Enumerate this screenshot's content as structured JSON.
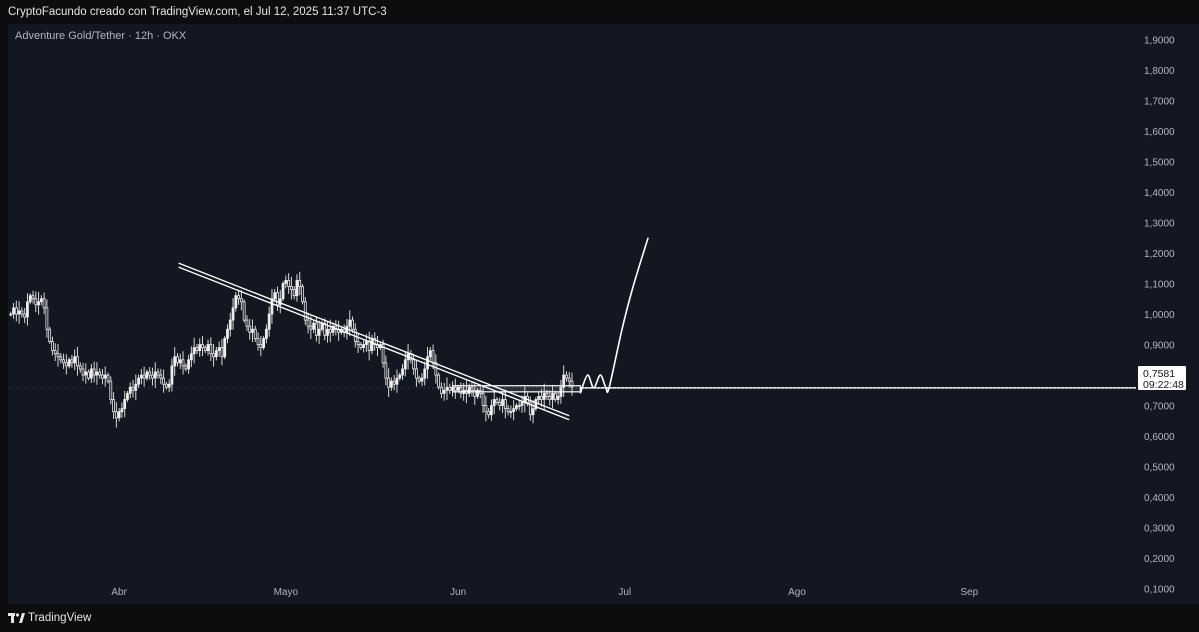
{
  "header": {
    "caption": "CryptoFacundo creado con TradingView.com, el Jul 12, 2025 11:37 UTC-3"
  },
  "symbol": {
    "title": "Adventure Gold/Tether · 12h · OKX"
  },
  "footer": {
    "brand": "TradingView"
  },
  "price_tag": {
    "price": "0,7581",
    "countdown": "09:22:48"
  },
  "colors": {
    "background": "#131722",
    "candle": "#e8e8e8",
    "drawing": "#ffffff",
    "text": "#b2b5be"
  },
  "chart_data": {
    "type": "candlestick",
    "symbol": "Adventure Gold/Tether",
    "interval": "12h",
    "exchange": "OKX",
    "ylim": [
      0.05,
      1.95
    ],
    "yticks": [
      1.9,
      1.8,
      1.7,
      1.6,
      1.5,
      1.4,
      1.3,
      1.2,
      1.1,
      1.0,
      0.9,
      0.8,
      0.7,
      0.6,
      0.5,
      0.4,
      0.3,
      0.2,
      0.1
    ],
    "ytick_labels": [
      "1,9000",
      "1,8000",
      "1,7000",
      "1,6000",
      "1,5000",
      "1,4000",
      "1,3000",
      "1,2000",
      "1,1000",
      "1,0000",
      "0,9000",
      "0,8000",
      "0,7000",
      "0,6000",
      "0,5000",
      "0,4000",
      "0,3000",
      "0,2000",
      "0,1000"
    ],
    "x_range_days": [
      -20,
      183
    ],
    "xticks": [
      {
        "label": "Abr",
        "day": 0
      },
      {
        "label": "Mayo",
        "day": 30
      },
      {
        "label": "Jun",
        "day": 61
      },
      {
        "label": "Jul",
        "day": 91
      },
      {
        "label": "Ago",
        "day": 122
      },
      {
        "label": "Sep",
        "day": 153
      }
    ],
    "candle_interval_days": 0.5,
    "first_candle_day": -19.5,
    "closes": [
      1.0,
      1.02,
      1.0,
      1.01,
      1.0,
      0.99,
      1.04,
      1.06,
      1.05,
      1.03,
      1.04,
      1.05,
      1.02,
      0.95,
      0.91,
      0.88,
      0.87,
      0.86,
      0.85,
      0.84,
      0.83,
      0.85,
      0.84,
      0.86,
      0.83,
      0.82,
      0.8,
      0.81,
      0.79,
      0.82,
      0.8,
      0.81,
      0.8,
      0.79,
      0.8,
      0.78,
      0.72,
      0.68,
      0.66,
      0.68,
      0.69,
      0.72,
      0.74,
      0.76,
      0.75,
      0.77,
      0.79,
      0.8,
      0.79,
      0.81,
      0.8,
      0.79,
      0.81,
      0.8,
      0.79,
      0.77,
      0.76,
      0.77,
      0.83,
      0.86,
      0.84,
      0.85,
      0.83,
      0.82,
      0.85,
      0.87,
      0.89,
      0.88,
      0.9,
      0.89,
      0.88,
      0.9,
      0.87,
      0.86,
      0.88,
      0.89,
      0.86,
      0.92,
      0.95,
      0.98,
      1.02,
      1.06,
      1.05,
      1.04,
      0.98,
      0.96,
      0.94,
      0.95,
      0.92,
      0.9,
      0.89,
      0.92,
      0.95,
      1.0,
      1.05,
      1.07,
      1.03,
      1.05,
      1.1,
      1.11,
      1.09,
      1.08,
      1.06,
      1.11,
      1.09,
      1.04,
      0.98,
      0.96,
      0.95,
      0.97,
      0.93,
      0.95,
      0.97,
      0.93,
      0.95,
      0.94,
      0.96,
      0.95,
      0.94,
      0.95,
      0.94,
      0.96,
      0.98,
      0.95,
      0.91,
      0.9,
      0.89,
      0.9,
      0.91,
      0.88,
      0.92,
      0.9,
      0.89,
      0.9,
      0.84,
      0.79,
      0.76,
      0.78,
      0.77,
      0.79,
      0.8,
      0.82,
      0.85,
      0.87,
      0.85,
      0.82,
      0.79,
      0.78,
      0.79,
      0.82,
      0.86,
      0.88,
      0.84,
      0.8,
      0.76,
      0.74,
      0.75,
      0.76,
      0.75,
      0.76,
      0.75,
      0.76,
      0.74,
      0.75,
      0.74,
      0.76,
      0.75,
      0.73,
      0.75,
      0.74,
      0.7,
      0.68,
      0.67,
      0.7,
      0.72,
      0.71,
      0.7,
      0.72,
      0.69,
      0.68,
      0.68,
      0.69,
      0.7,
      0.7,
      0.71,
      0.73,
      0.71,
      0.67,
      0.69,
      0.72,
      0.73,
      0.72,
      0.74,
      0.73,
      0.72,
      0.74,
      0.72,
      0.73,
      0.76,
      0.8,
      0.79,
      0.78,
      0.76
    ],
    "drawings": {
      "descending_trendline": {
        "from": {
          "day": 10.7,
          "price": 1.16
        },
        "to": {
          "day": 81,
          "price": 0.66
        }
      },
      "support_zone": {
        "from_day": 60,
        "to_day": 83,
        "low": 0.745,
        "high": 0.765
      },
      "horizontal_level": {
        "price": 0.758,
        "from_day": 83
      },
      "projection_path": [
        {
          "day": 83.0,
          "price": 0.74
        },
        {
          "day": 84.3,
          "price": 0.8
        },
        {
          "day": 85.4,
          "price": 0.758
        },
        {
          "day": 86.6,
          "price": 0.8
        },
        {
          "day": 87.6,
          "price": 0.758
        },
        {
          "day": 88.2,
          "price": 0.76
        },
        {
          "day": 90.5,
          "price": 0.95
        },
        {
          "day": 92.5,
          "price": 1.09
        },
        {
          "day": 95.2,
          "price": 1.25
        }
      ]
    }
  }
}
